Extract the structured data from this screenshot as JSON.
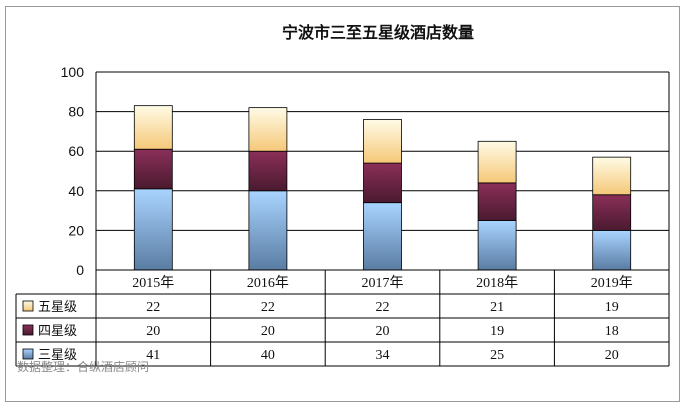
{
  "chart_data": {
    "type": "bar",
    "stacked": true,
    "title": "宁波市三至五星级酒店数量",
    "categories": [
      "2015年",
      "2016年",
      "2017年",
      "2018年",
      "2019年"
    ],
    "ylim": [
      0,
      100
    ],
    "yticks": [
      "0",
      "20",
      "40",
      "60",
      "80",
      "100"
    ],
    "grid": true,
    "legend_placement": "data-table-left",
    "series": [
      {
        "name": "三星级",
        "values": [
          41,
          40,
          34,
          25,
          20
        ],
        "color_top": "#a9d4ff",
        "color_bottom": "#5a7ca3"
      },
      {
        "name": "四星级",
        "values": [
          20,
          20,
          20,
          19,
          18
        ],
        "color_top": "#8b2f58",
        "color_bottom": "#4a1a30"
      },
      {
        "name": "五星级",
        "values": [
          22,
          22,
          22,
          21,
          19
        ],
        "color_top": "#fffbe6",
        "color_bottom": "#f5c878"
      }
    ],
    "table_rows_order": [
      "五星级",
      "四星级",
      "三星级"
    ],
    "source_note": "数据整理：合纵酒店顾问"
  }
}
